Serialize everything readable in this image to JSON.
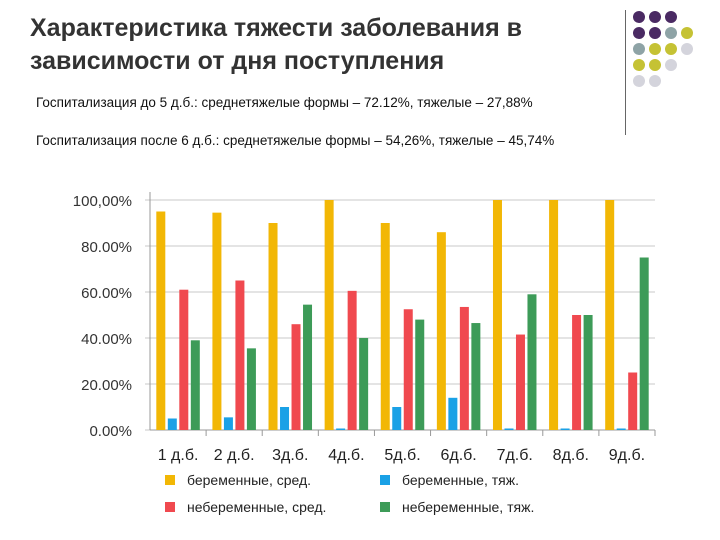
{
  "slide": {
    "title": "Характеристика тяжести заболевания в зависимости от дня поступления",
    "note1": "Госпитализация до 5 д.б.: среднетяжелые формы – 72.12%, тяжелые – 27,88%",
    "note2": "Госпитализация после 6 д.б.: среднетяжелые формы – 54,26%, тяжелые – 45,74%"
  },
  "decor": {
    "dot_colors": [
      "#4a2a63",
      "#8ea3a6",
      "#c5c234",
      "#d4d4dc"
    ]
  },
  "chart_data": {
    "type": "bar",
    "categories": [
      "1 д.б.",
      "2 д.б.",
      "3д.б.",
      "4д.б.",
      "5д.б.",
      "6д.б.",
      "7д.б.",
      "8д.б.",
      "9д.б."
    ],
    "y_tick_labels": [
      "0.00%",
      "20.00%",
      "40.00%",
      "60.00%",
      "80.00%",
      "100,00%"
    ],
    "ylim": [
      0,
      100
    ],
    "grid": true,
    "legend_position": "bottom",
    "series": [
      {
        "name": "беременные,  сред.",
        "color": "#f2b705",
        "values": [
          95,
          94.5,
          90,
          100,
          90,
          86,
          100,
          100,
          100
        ]
      },
      {
        "name": "беременные,  тяж.",
        "color": "#1aa1e6",
        "values": [
          5,
          5.5,
          10,
          0,
          10,
          14,
          0,
          0,
          0
        ]
      },
      {
        "name": "небеременные,  сред.",
        "color": "#f0494f",
        "values": [
          61,
          65,
          46,
          60.5,
          52.5,
          53.5,
          41.5,
          50,
          25
        ]
      },
      {
        "name": "небеременные,  тяж.",
        "color": "#3d9b58",
        "values": [
          39,
          35.5,
          54.5,
          40,
          48,
          46.5,
          59,
          50,
          75
        ]
      }
    ]
  }
}
